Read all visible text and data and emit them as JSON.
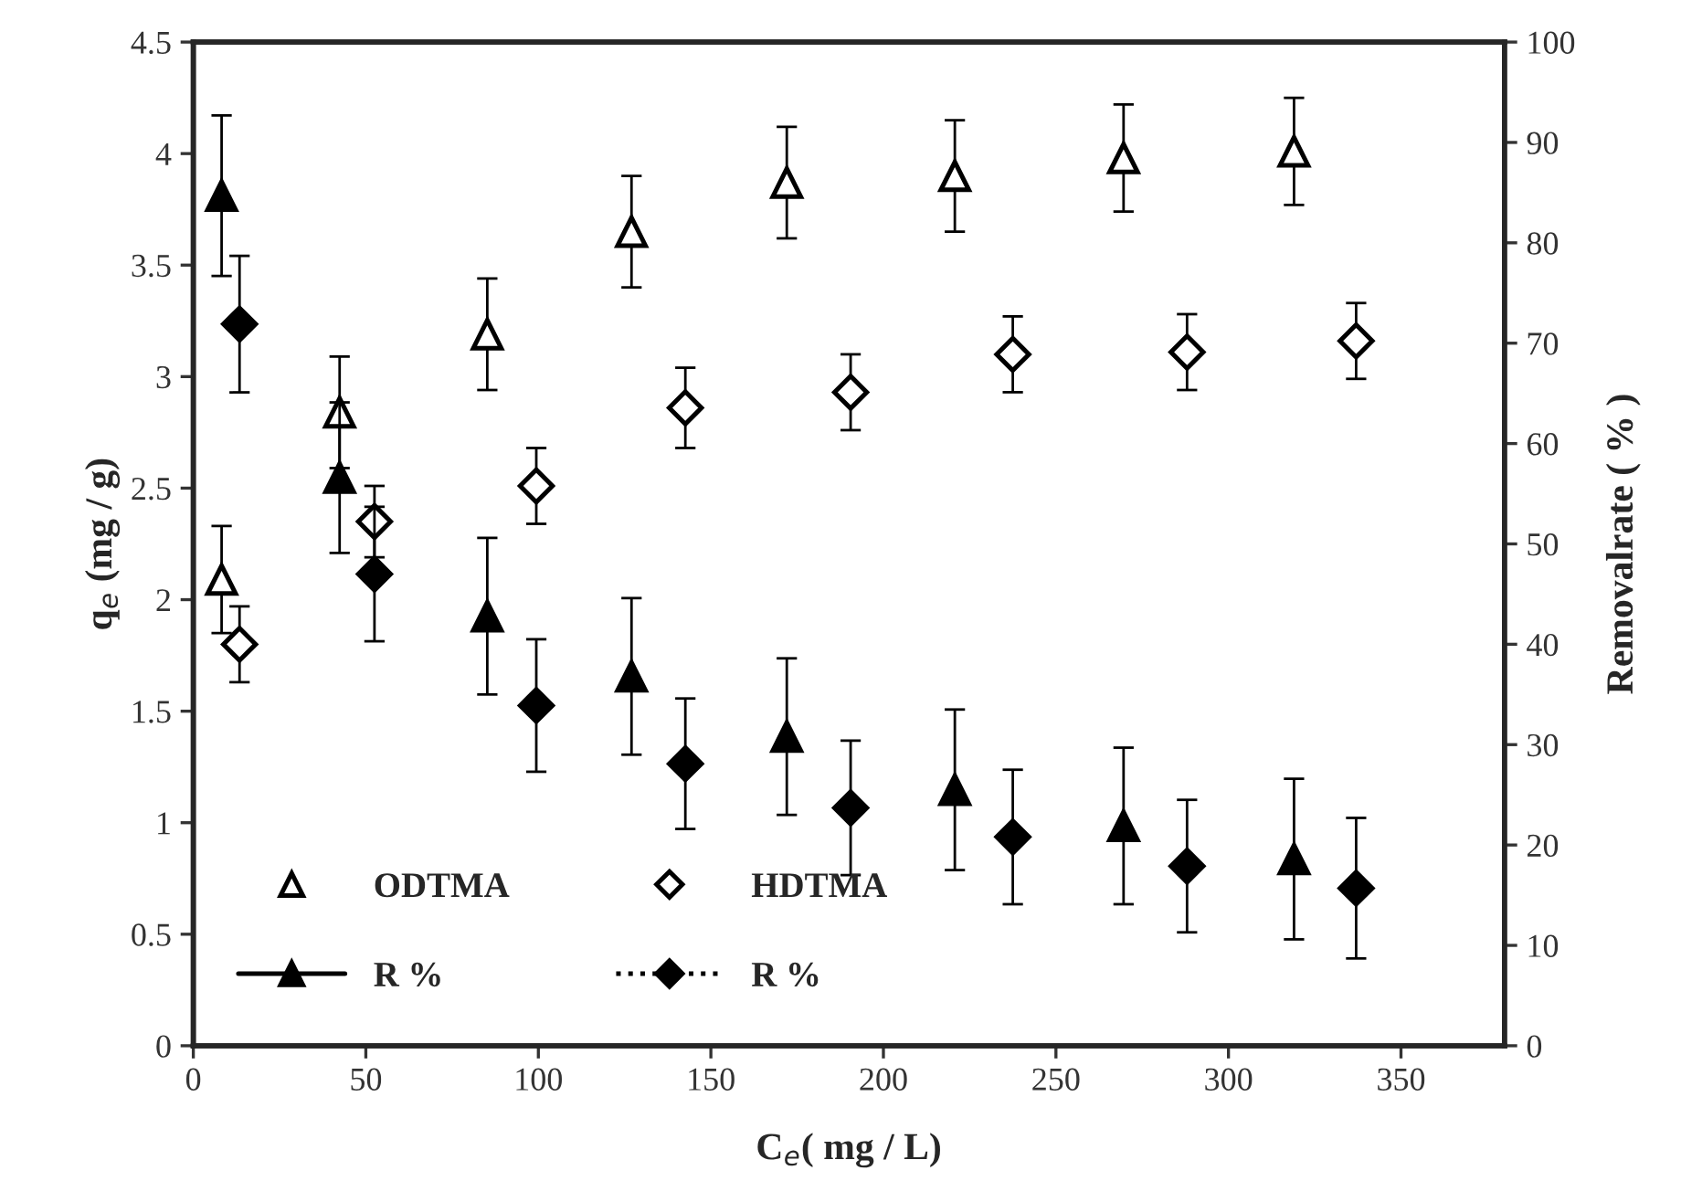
{
  "chart_data": {
    "type": "scatter",
    "xlabel": "C$_{e}$( mg / L)",
    "ylabel": "q$_{e}$ (mg / g)",
    "y2label": "Removalrate ( % )",
    "xlim": [
      0,
      380
    ],
    "xticks": [
      0,
      50,
      100,
      150,
      200,
      250,
      300,
      350
    ],
    "ylim": [
      0,
      4.5
    ],
    "yticks": [
      0,
      0.5,
      1,
      1.5,
      2,
      2.5,
      3,
      3.5,
      4,
      4.5
    ],
    "y2lim": [
      0,
      100
    ],
    "y2ticks": [
      0,
      10,
      20,
      30,
      40,
      50,
      60,
      70,
      80,
      90,
      100
    ],
    "grid": false,
    "legend": "bottom left",
    "series": [
      {
        "name": "ODTMA",
        "color": "#000000",
        "marker": "triangle",
        "axis": "y",
        "x": [
          8.2,
          42.4,
          85.2,
          127,
          172,
          220.7,
          269.6,
          319
        ],
        "values": [
          2.09,
          2.84,
          3.19,
          3.65,
          3.87,
          3.9,
          3.98,
          4.01
        ],
        "errors": [
          0.24,
          0.25,
          0.25,
          0.25,
          0.25,
          0.25,
          0.24,
          0.24
        ]
      },
      {
        "name": "R %",
        "color": "#000000",
        "marker": "triangle",
        "line_style": "solid",
        "axis": "y2",
        "x": [
          8.2,
          42.4,
          85.2,
          127,
          172,
          220.7,
          269.6,
          319
        ],
        "values": [
          84.7,
          56.6,
          42.8,
          36.8,
          30.8,
          25.5,
          21.9,
          18.6
        ],
        "errors": [
          8,
          7.5,
          7.8,
          7.8,
          7.8,
          8,
          7.8,
          8
        ]
      },
      {
        "name": "HDTMA",
        "color": "#000000",
        "marker": "diamond",
        "axis": "y",
        "x": [
          13.4,
          52.5,
          99.4,
          142.6,
          190.5,
          237.5,
          288,
          337
        ],
        "values": [
          1.8,
          2.35,
          2.51,
          2.86,
          2.93,
          3.1,
          3.11,
          3.16
        ],
        "errors": [
          0.17,
          0.16,
          0.17,
          0.18,
          0.17,
          0.17,
          0.17,
          0.17
        ]
      },
      {
        "name": "R %",
        "color": "#000000",
        "marker": "diamond",
        "line_style": "dotted",
        "axis": "y2",
        "x": [
          13.4,
          52.5,
          99.4,
          142.6,
          190.5,
          237.5,
          288,
          337
        ],
        "values": [
          71.9,
          47.0,
          33.9,
          28.1,
          23.7,
          20.8,
          17.9,
          15.7
        ],
        "errors": [
          6.8,
          6.7,
          6.6,
          6.5,
          6.7,
          6.7,
          6.6,
          7
        ]
      }
    ]
  }
}
